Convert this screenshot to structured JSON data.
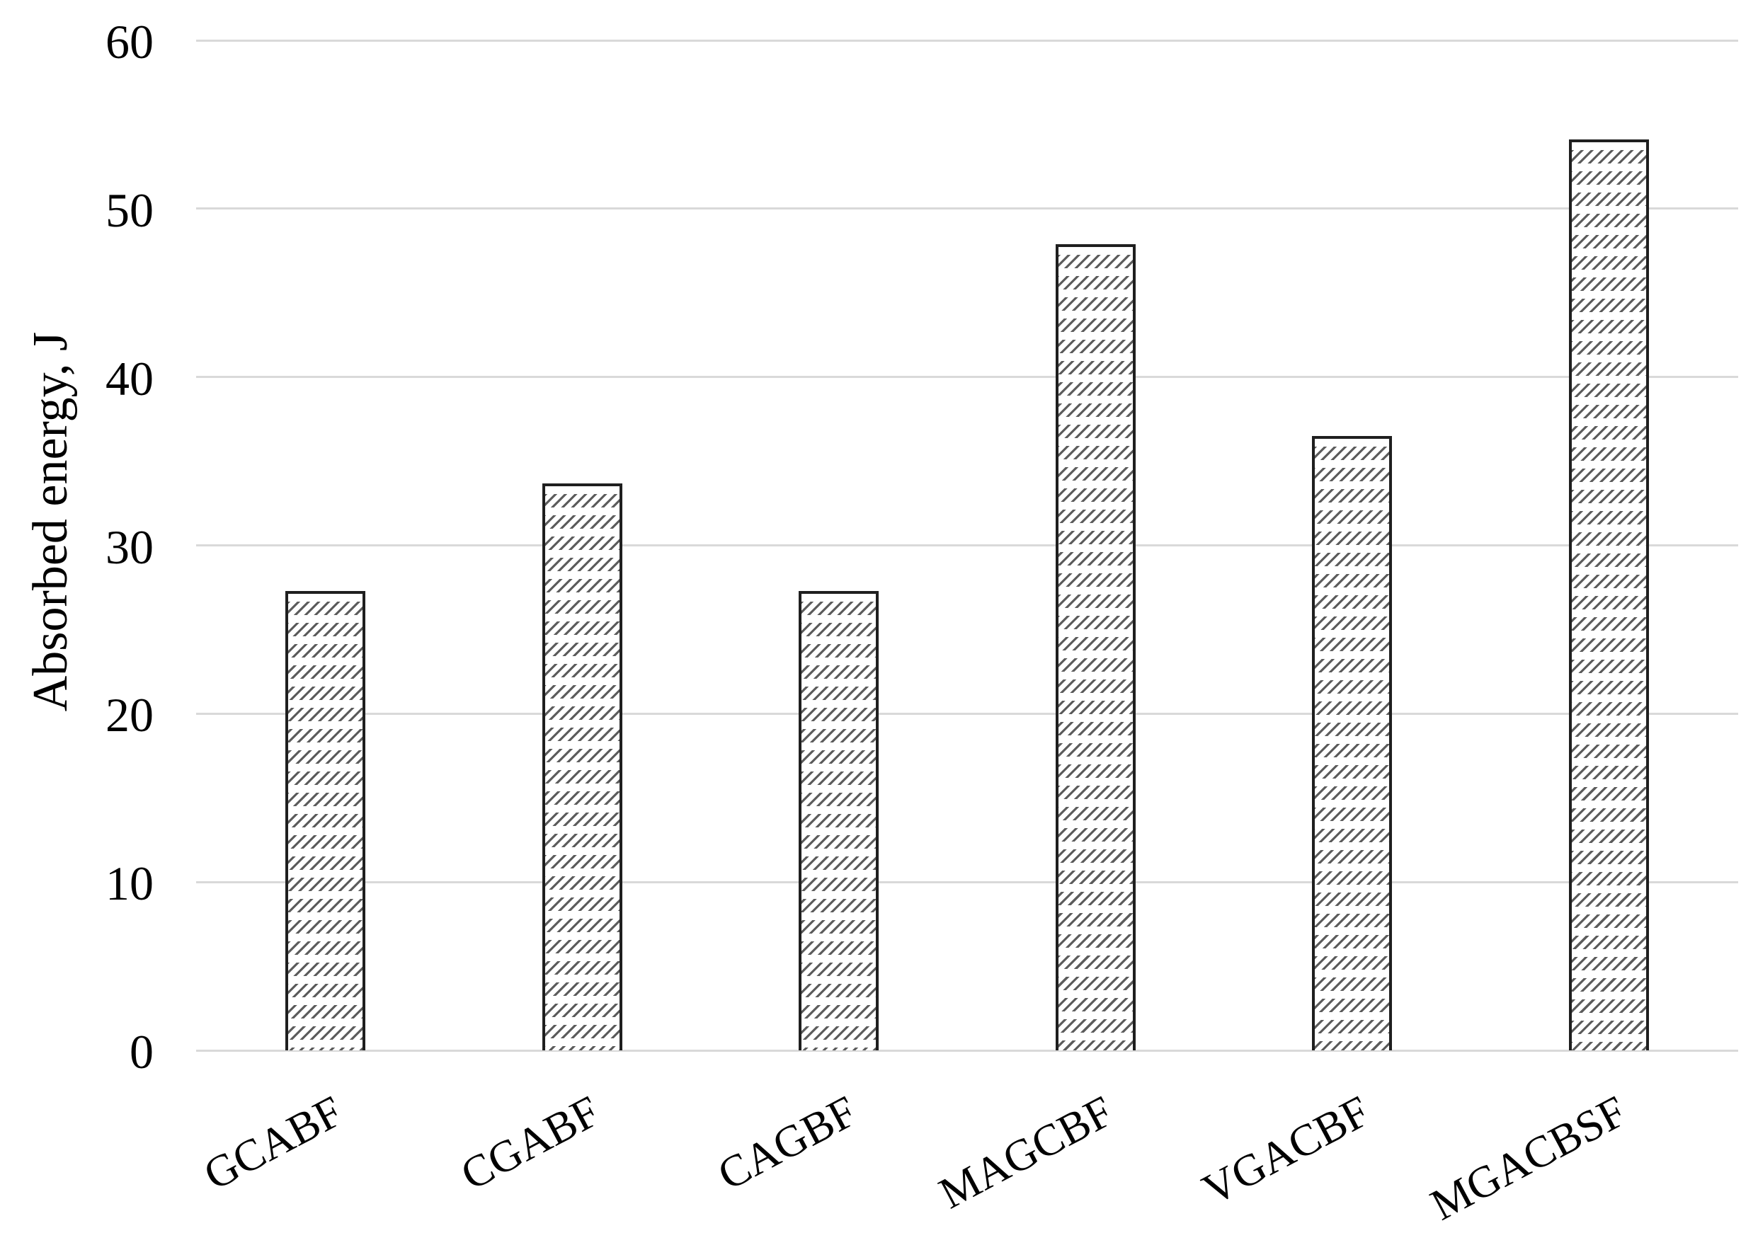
{
  "chart_data": {
    "type": "bar",
    "title": "",
    "xlabel": "",
    "ylabel": "Absorbed energy, J",
    "categories": [
      "GCABF",
      "CGABF",
      "CAGBF",
      "MAGCBF",
      "VGACBF",
      "MGACBSF"
    ],
    "values": [
      27.3,
      33.7,
      27.3,
      47.9,
      36.5,
      54.1
    ],
    "ylim": [
      0,
      60
    ],
    "yticks": [
      0,
      10,
      20,
      30,
      40,
      50,
      60
    ],
    "grid": true,
    "legend": false,
    "bar_style": "diagonal-hatch",
    "colors": {
      "gridline": "#d9d9d9",
      "bar_border": "#1f1f1f",
      "bar_fill": "#ffffff",
      "hatch": "#5c5c5c",
      "text": "#000000",
      "background": "#ffffff"
    }
  }
}
